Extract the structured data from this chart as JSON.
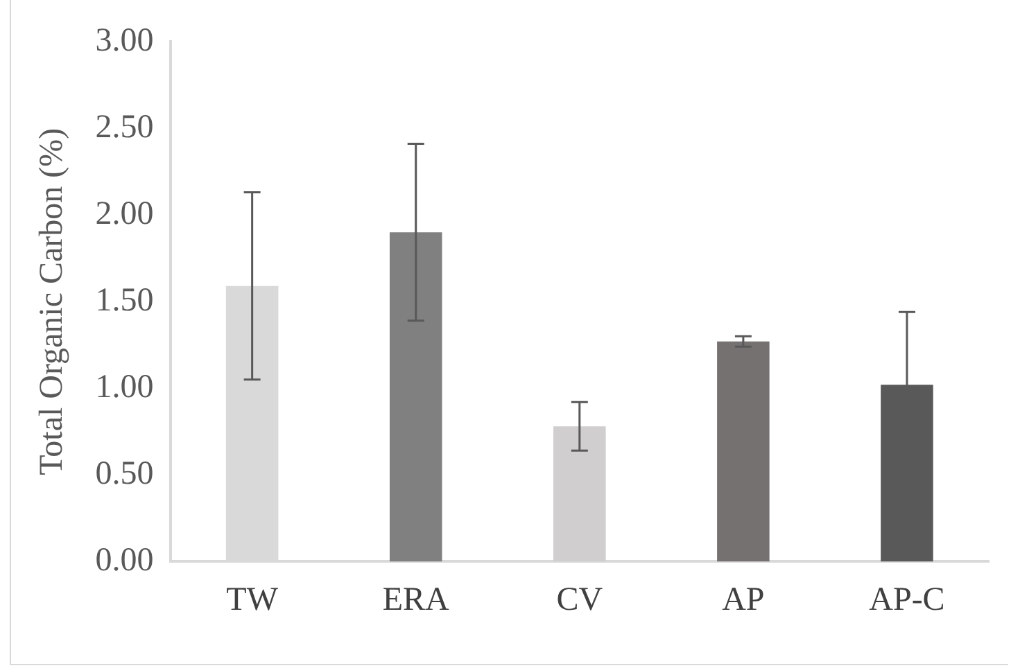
{
  "chart_data": {
    "type": "bar",
    "ylabel": "Total Organic Carbon (%)",
    "categories": [
      "TW",
      "ERA",
      "CV",
      "AP",
      "AP-C"
    ],
    "values": [
      1.59,
      1.9,
      0.78,
      1.27,
      1.02
    ],
    "colors": [
      "#d9d9d9",
      "#808080",
      "#d0cecf",
      "#767171",
      "#595959"
    ],
    "errors": [
      0.54,
      0.51,
      0.14,
      0.03,
      0.42
    ],
    "ylim": [
      0,
      3
    ],
    "yticks": [
      {
        "value": 0,
        "label": "0.00"
      },
      {
        "value": 0.5,
        "label": "0.50"
      },
      {
        "value": 1,
        "label": "1.00"
      },
      {
        "value": 1.5,
        "label": "1.50"
      },
      {
        "value": 2,
        "label": "2.00"
      },
      {
        "value": 2.5,
        "label": "2.50"
      },
      {
        "value": 3,
        "label": "3.00"
      }
    ],
    "grid": false,
    "legend": false
  }
}
